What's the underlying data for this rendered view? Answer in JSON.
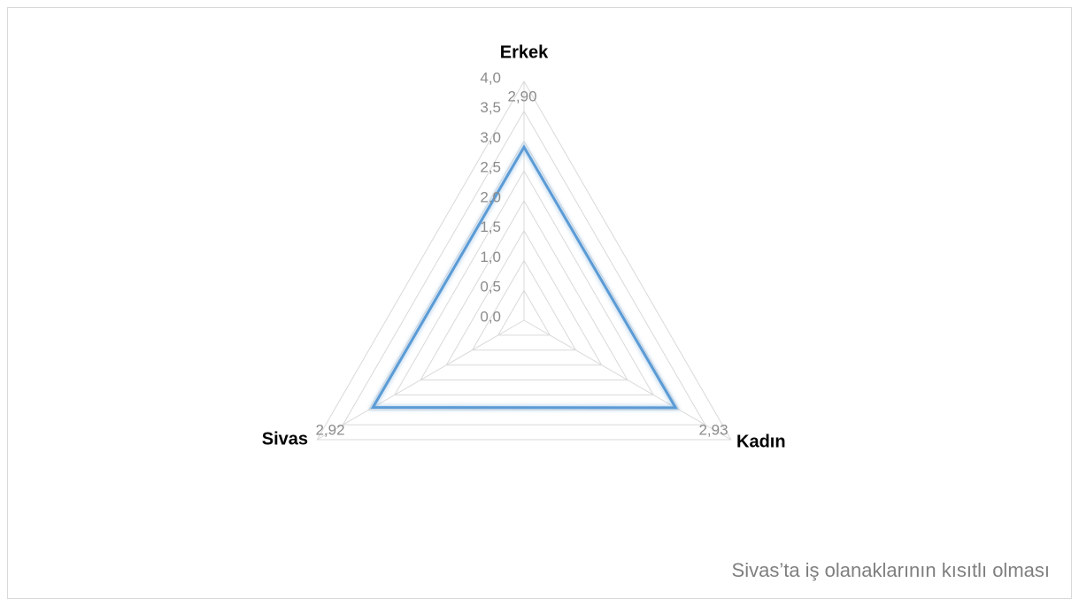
{
  "chart_data": {
    "type": "radar",
    "categories": [
      "Erkek",
      "Kadın",
      "Sivas"
    ],
    "values": [
      2.9,
      2.93,
      2.92
    ],
    "value_labels": [
      "2,90",
      "2,93",
      "2,92"
    ],
    "color": "#5b9bd5",
    "rlim": [
      0,
      4
    ],
    "rticks": [
      {
        "value": 0,
        "label": "0,0"
      },
      {
        "value": 0.5,
        "label": "0,5"
      },
      {
        "value": 1,
        "label": "1,0"
      },
      {
        "value": 1.5,
        "label": "1,5"
      },
      {
        "value": 2,
        "label": "2,0"
      },
      {
        "value": 2.5,
        "label": "2,5"
      },
      {
        "value": 3,
        "label": "3,0"
      },
      {
        "value": 3.5,
        "label": "3,5"
      },
      {
        "value": 4,
        "label": "4,0"
      }
    ],
    "grid": true,
    "annotation": "Sivas’ta iş olanaklarının kısıtlı olması"
  }
}
